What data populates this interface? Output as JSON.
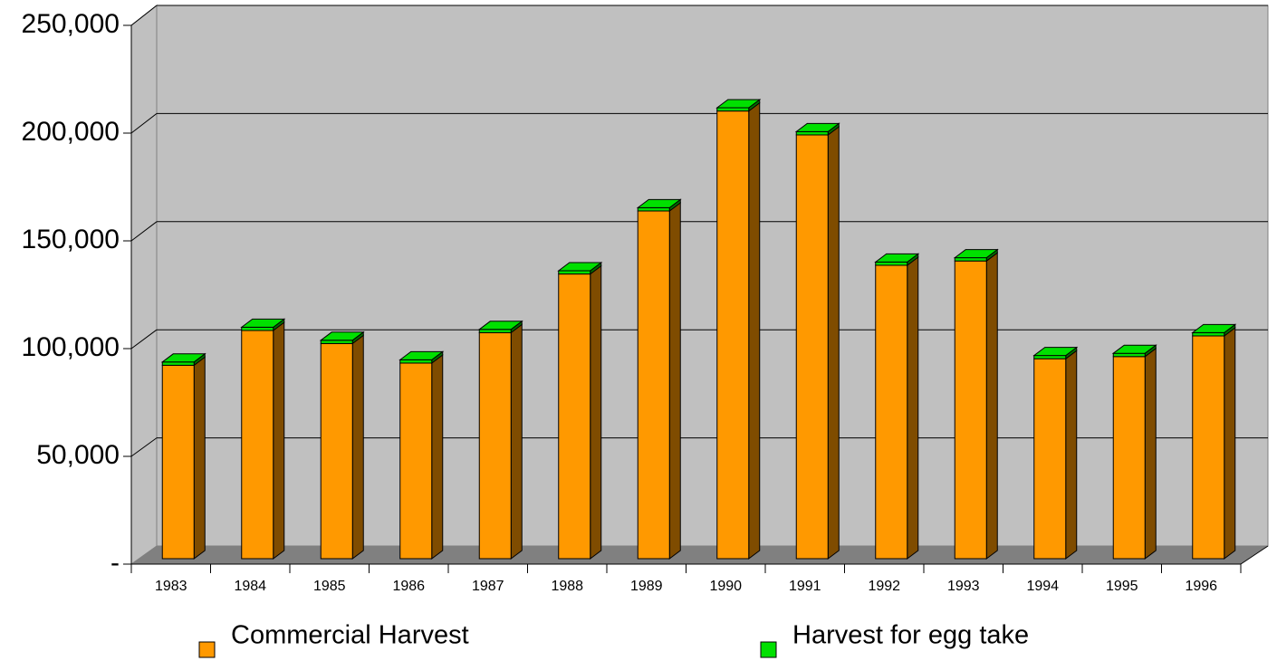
{
  "chart_data": {
    "type": "bar3d_stacked",
    "categories": [
      "1983",
      "1984",
      "1985",
      "1986",
      "1987",
      "1988",
      "1989",
      "1990",
      "1991",
      "1992",
      "1993",
      "1994",
      "1995",
      "1996"
    ],
    "series": [
      {
        "name": "Commercial Harvest",
        "color": "#ff9900",
        "values": [
          89000,
          105000,
          99000,
          90000,
          104000,
          131000,
          160000,
          206000,
          195000,
          135000,
          137000,
          92000,
          93000,
          102500
        ]
      },
      {
        "name": "Harvest for egg take",
        "color": "#00e000",
        "values": [
          1500,
          1500,
          1500,
          1500,
          1500,
          1500,
          1500,
          1500,
          1500,
          1500,
          1500,
          1500,
          1500,
          1500
        ]
      }
    ],
    "ylim": [
      0,
      250000
    ],
    "yticks": [
      {
        "value": 0,
        "label": "-"
      },
      {
        "value": 50000,
        "label": "50,000"
      },
      {
        "value": 100000,
        "label": "100,000"
      },
      {
        "value": 150000,
        "label": "150,000"
      },
      {
        "value": 200000,
        "label": "200,000"
      },
      {
        "value": 250000,
        "label": "250,000"
      }
    ],
    "grid": true
  }
}
